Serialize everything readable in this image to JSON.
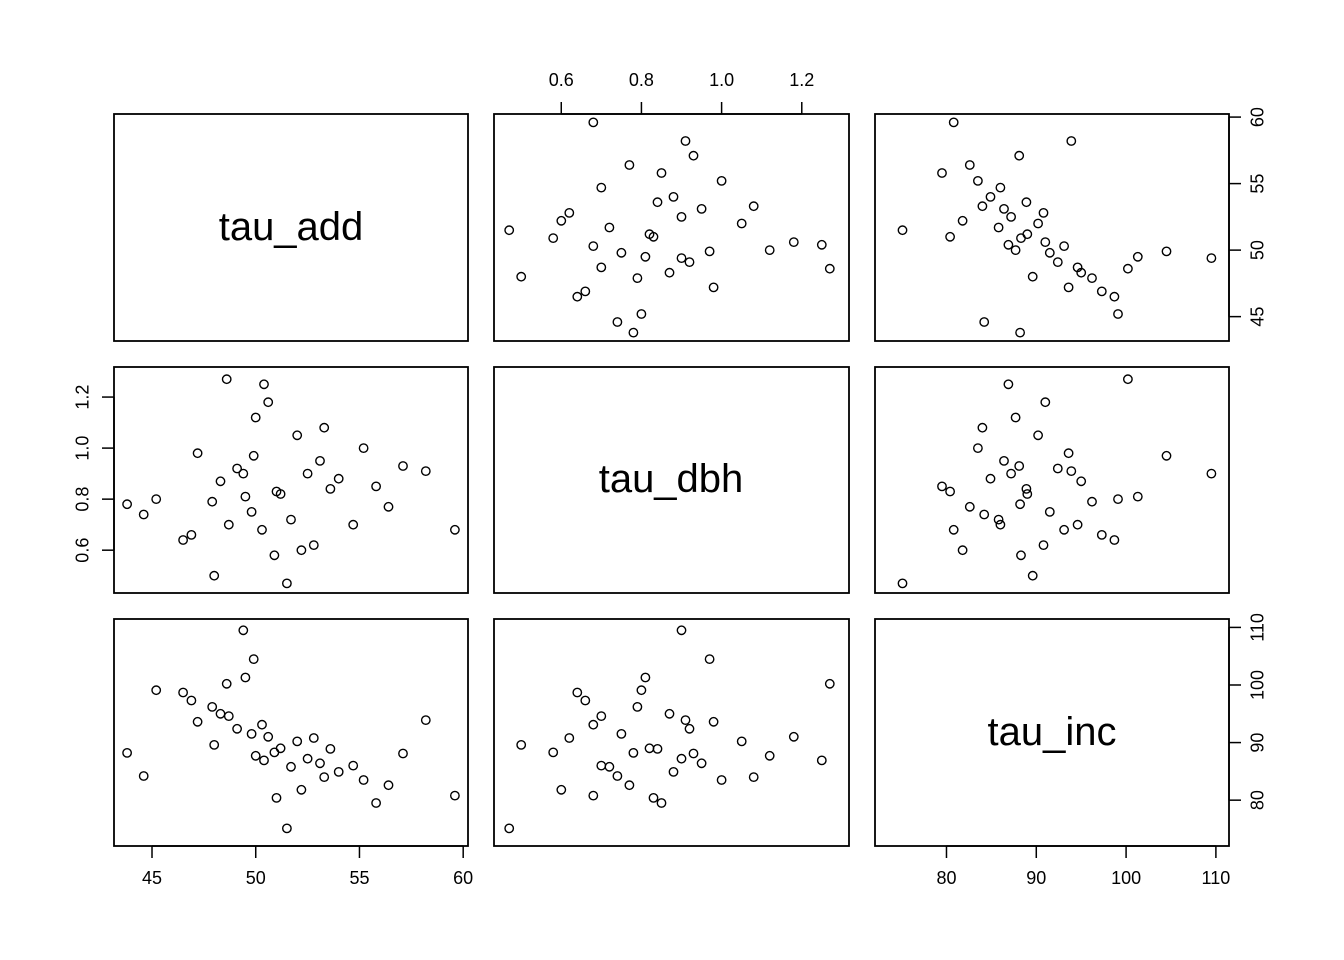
{
  "chart_data": {
    "type": "scatter",
    "layout": "pairs-matrix",
    "variables": [
      "tau_add",
      "tau_dbh",
      "tau_inc"
    ],
    "variable_ranges": {
      "tau_add": [
        43.8,
        59.6
      ],
      "tau_dbh": [
        0.465,
        1.285
      ],
      "tau_inc": [
        73.5,
        110.0
      ]
    },
    "axis_ticks": {
      "tau_add": [
        45,
        50,
        55,
        60
      ],
      "tau_dbh": [
        0.6,
        0.8,
        1.0,
        1.2
      ],
      "tau_inc": [
        80,
        90,
        100,
        110
      ]
    },
    "axis_tick_labels": {
      "tau_add": [
        "45",
        "50",
        "55",
        "60"
      ],
      "tau_dbh": [
        "0.6",
        "0.8",
        "1.0",
        "1.2"
      ],
      "tau_inc": [
        "80",
        "90",
        "100",
        "110"
      ]
    },
    "axis_placement": {
      "bottom": [
        "tau_add",
        null,
        "tau_inc"
      ],
      "top": [
        null,
        "tau_dbh",
        null
      ],
      "left": [
        null,
        "tau_dbh",
        null
      ],
      "right": [
        "tau_add",
        null,
        "tau_inc"
      ]
    },
    "marker": "open-circle",
    "grid": false,
    "legend": "none",
    "points": [
      {
        "tau_add": 51.2,
        "tau_dbh": 0.82,
        "tau_inc": 89.0
      },
      {
        "tau_add": 49.8,
        "tau_dbh": 0.75,
        "tau_inc": 91.5
      },
      {
        "tau_add": 52.5,
        "tau_dbh": 0.9,
        "tau_inc": 87.2
      },
      {
        "tau_add": 50.3,
        "tau_dbh": 0.68,
        "tau_inc": 93.1
      },
      {
        "tau_add": 53.1,
        "tau_dbh": 0.95,
        "tau_inc": 86.4
      },
      {
        "tau_add": 48.7,
        "tau_dbh": 0.7,
        "tau_inc": 94.6
      },
      {
        "tau_add": 54.0,
        "tau_dbh": 0.88,
        "tau_inc": 84.9
      },
      {
        "tau_add": 47.9,
        "tau_dbh": 0.79,
        "tau_inc": 96.2
      },
      {
        "tau_add": 55.2,
        "tau_dbh": 1.0,
        "tau_inc": 83.5
      },
      {
        "tau_add": 46.5,
        "tau_dbh": 0.64,
        "tau_inc": 98.7
      },
      {
        "tau_add": 52.0,
        "tau_dbh": 1.05,
        "tau_inc": 90.2
      },
      {
        "tau_add": 50.9,
        "tau_dbh": 0.58,
        "tau_inc": 88.3
      },
      {
        "tau_add": 49.1,
        "tau_dbh": 0.92,
        "tau_inc": 92.4
      },
      {
        "tau_add": 51.7,
        "tau_dbh": 0.72,
        "tau_inc": 85.8
      },
      {
        "tau_add": 53.6,
        "tau_dbh": 0.84,
        "tau_inc": 88.9
      },
      {
        "tau_add": 48.3,
        "tau_dbh": 0.87,
        "tau_inc": 95.0
      },
      {
        "tau_add": 56.4,
        "tau_dbh": 0.77,
        "tau_inc": 82.6
      },
      {
        "tau_add": 45.2,
        "tau_dbh": 0.8,
        "tau_inc": 99.1
      },
      {
        "tau_add": 50.0,
        "tau_dbh": 1.12,
        "tau_inc": 87.7
      },
      {
        "tau_add": 52.8,
        "tau_dbh": 0.62,
        "tau_inc": 90.8
      },
      {
        "tau_add": 47.2,
        "tau_dbh": 0.98,
        "tau_inc": 93.6
      },
      {
        "tau_add": 54.7,
        "tau_dbh": 0.7,
        "tau_inc": 86.0
      },
      {
        "tau_add": 51.0,
        "tau_dbh": 0.83,
        "tau_inc": 80.4
      },
      {
        "tau_add": 49.5,
        "tau_dbh": 0.81,
        "tau_inc": 101.3
      },
      {
        "tau_add": 57.1,
        "tau_dbh": 0.93,
        "tau_inc": 88.1
      },
      {
        "tau_add": 44.6,
        "tau_dbh": 0.74,
        "tau_inc": 84.2
      },
      {
        "tau_add": 50.6,
        "tau_dbh": 1.18,
        "tau_inc": 91.0
      },
      {
        "tau_add": 48.0,
        "tau_dbh": 0.5,
        "tau_inc": 89.6
      },
      {
        "tau_add": 53.3,
        "tau_dbh": 1.08,
        "tau_inc": 84.0
      },
      {
        "tau_add": 46.9,
        "tau_dbh": 0.66,
        "tau_inc": 97.3
      },
      {
        "tau_add": 55.8,
        "tau_dbh": 0.85,
        "tau_inc": 79.5
      },
      {
        "tau_add": 49.9,
        "tau_dbh": 0.97,
        "tau_inc": 104.5
      },
      {
        "tau_add": 52.2,
        "tau_dbh": 0.6,
        "tau_inc": 81.8
      },
      {
        "tau_add": 58.2,
        "tau_dbh": 0.91,
        "tau_inc": 93.9
      },
      {
        "tau_add": 43.8,
        "tau_dbh": 0.78,
        "tau_inc": 88.2
      },
      {
        "tau_add": 50.4,
        "tau_dbh": 1.25,
        "tau_inc": 86.9
      },
      {
        "tau_add": 59.6,
        "tau_dbh": 0.68,
        "tau_inc": 80.8
      },
      {
        "tau_add": 49.4,
        "tau_dbh": 0.9,
        "tau_inc": 109.5
      },
      {
        "tau_add": 51.5,
        "tau_dbh": 0.47,
        "tau_inc": 75.1
      },
      {
        "tau_add": 48.6,
        "tau_dbh": 1.27,
        "tau_inc": 100.2
      }
    ]
  }
}
